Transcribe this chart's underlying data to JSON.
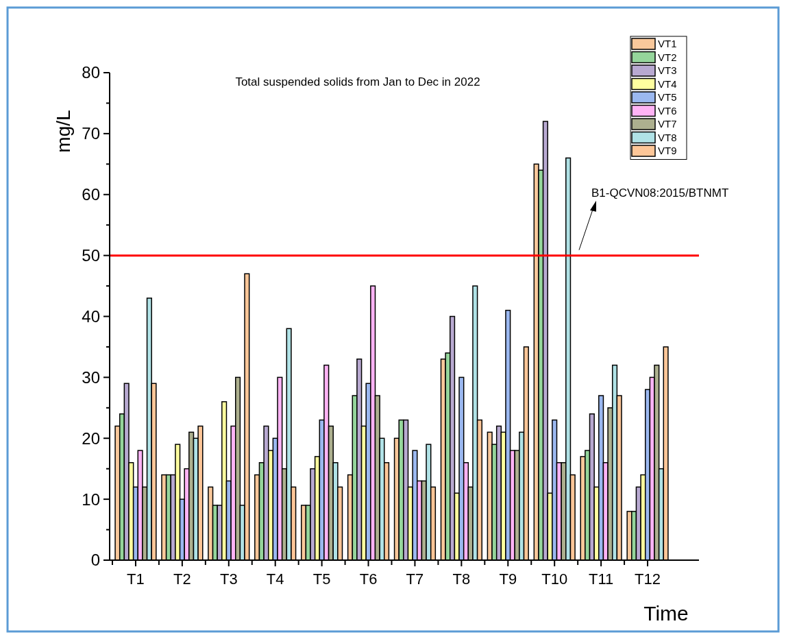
{
  "chart_data": {
    "type": "bar",
    "title": "Total suspended solids from Jan to Dec in 2022",
    "xlabel": "Time",
    "ylabel": "mg/L",
    "categories": [
      "T1",
      "T2",
      "T3",
      "T4",
      "T5",
      "T6",
      "T7",
      "T8",
      "T9",
      "T10",
      "T11",
      "T12"
    ],
    "series": [
      {
        "name": "VT1",
        "color": "#f9c89b",
        "values": [
          22,
          14,
          12,
          14,
          9,
          14,
          20,
          33,
          21,
          65,
          17,
          8
        ]
      },
      {
        "name": "VT2",
        "color": "#95d59b",
        "values": [
          24,
          14,
          9,
          16,
          9,
          27,
          23,
          34,
          19,
          64,
          18,
          8
        ]
      },
      {
        "name": "VT3",
        "color": "#b8a9d1",
        "values": [
          29,
          14,
          9,
          22,
          15,
          33,
          23,
          40,
          22,
          72,
          24,
          12
        ]
      },
      {
        "name": "VT4",
        "color": "#ffff9f",
        "values": [
          16,
          19,
          26,
          18,
          17,
          22,
          12,
          11,
          21,
          11,
          12,
          14
        ]
      },
      {
        "name": "VT5",
        "color": "#9bb8f0",
        "values": [
          12,
          10,
          13,
          20,
          23,
          29,
          18,
          30,
          41,
          23,
          27,
          28
        ]
      },
      {
        "name": "VT6",
        "color": "#ffb3f5",
        "values": [
          18,
          15,
          22,
          30,
          32,
          45,
          13,
          16,
          18,
          16,
          16,
          30
        ]
      },
      {
        "name": "VT7",
        "color": "#adb08f",
        "values": [
          12,
          21,
          30,
          15,
          22,
          27,
          13,
          12,
          18,
          16,
          25,
          32
        ]
      },
      {
        "name": "VT8",
        "color": "#b0e2e6",
        "values": [
          43,
          20,
          9,
          38,
          16,
          20,
          19,
          45,
          21,
          66,
          32,
          15
        ]
      },
      {
        "name": "VT9",
        "color": "#fdc698",
        "values": [
          29,
          22,
          47,
          12,
          12,
          16,
          12,
          23,
          35,
          14,
          27,
          35
        ]
      }
    ],
    "ylim": [
      0,
      80
    ],
    "yticks": [
      0,
      {
        "value": 5,
        "label": null
      },
      10,
      {
        "value": 15,
        "label": null
      },
      20,
      {
        "value": 25,
        "label": null
      },
      30,
      {
        "value": 35,
        "label": null
      },
      40,
      {
        "value": 45,
        "label": null
      },
      50,
      {
        "value": 55,
        "label": null
      },
      60,
      {
        "value": 65,
        "label": null
      },
      70,
      {
        "value": 75,
        "label": null
      },
      80
    ],
    "ref_lines": [
      {
        "axis": "y",
        "value": 50,
        "color": "#ff0000"
      }
    ],
    "annotations": [
      "B1-QCVN08:2015/BTNMT"
    ],
    "legend": "top right",
    "grid": false
  }
}
